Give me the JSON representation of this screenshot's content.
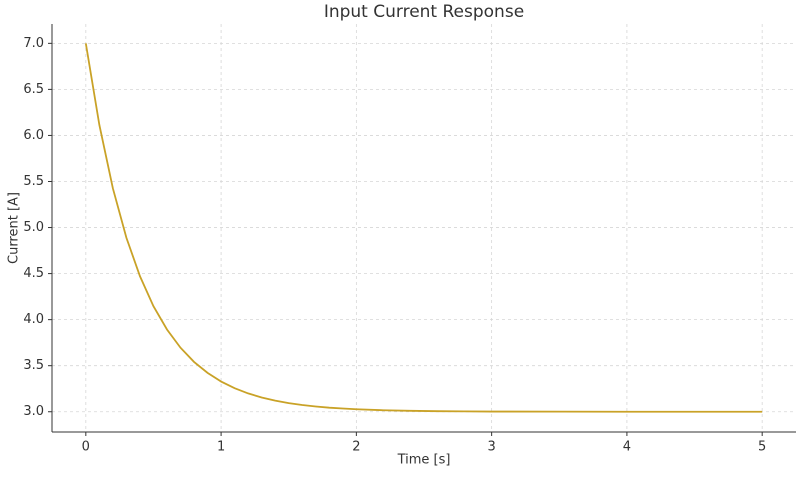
{
  "chart_data": {
    "type": "line",
    "title": "Input Current Response",
    "x_label": "Time [s]",
    "y_label": "Current [A]",
    "x": [
      0,
      0.1,
      0.2,
      0.3,
      0.4,
      0.5,
      0.6,
      0.7,
      0.8,
      0.9,
      1.0,
      1.1,
      1.2,
      1.3,
      1.4,
      1.5,
      1.6,
      1.7,
      1.8,
      1.9,
      2.0,
      2.2,
      2.4,
      2.6,
      2.8,
      3.0,
      3.5,
      4.0,
      4.5,
      5.0
    ],
    "series": [
      {
        "color": "#c9a227",
        "values": [
          7,
          6.115,
          5.426,
          4.889,
          4.472,
          4.146,
          3.893,
          3.695,
          3.541,
          3.422,
          3.328,
          3.256,
          3.199,
          3.155,
          3.121,
          3.094,
          3.073,
          3.057,
          3.044,
          3.035,
          3.027,
          3.016,
          3.01,
          3.006,
          3.004,
          3.002,
          3.001,
          3.0,
          3.0,
          3.0
        ]
      }
    ],
    "xlim": [
      -0.25,
      5.25
    ],
    "ylim": [
      2.78,
      7.21
    ],
    "xticks": [
      0,
      1,
      2,
      3,
      4,
      5
    ],
    "yticks": [
      {
        "value": 3,
        "label": "3.0"
      },
      3.5,
      {
        "value": 4,
        "label": "4.0"
      },
      4.5,
      {
        "value": 5,
        "label": "5.0"
      },
      5.5,
      {
        "value": 6,
        "label": "6.0"
      },
      6.5,
      {
        "value": 7,
        "label": "7.0"
      }
    ],
    "grid": true
  }
}
